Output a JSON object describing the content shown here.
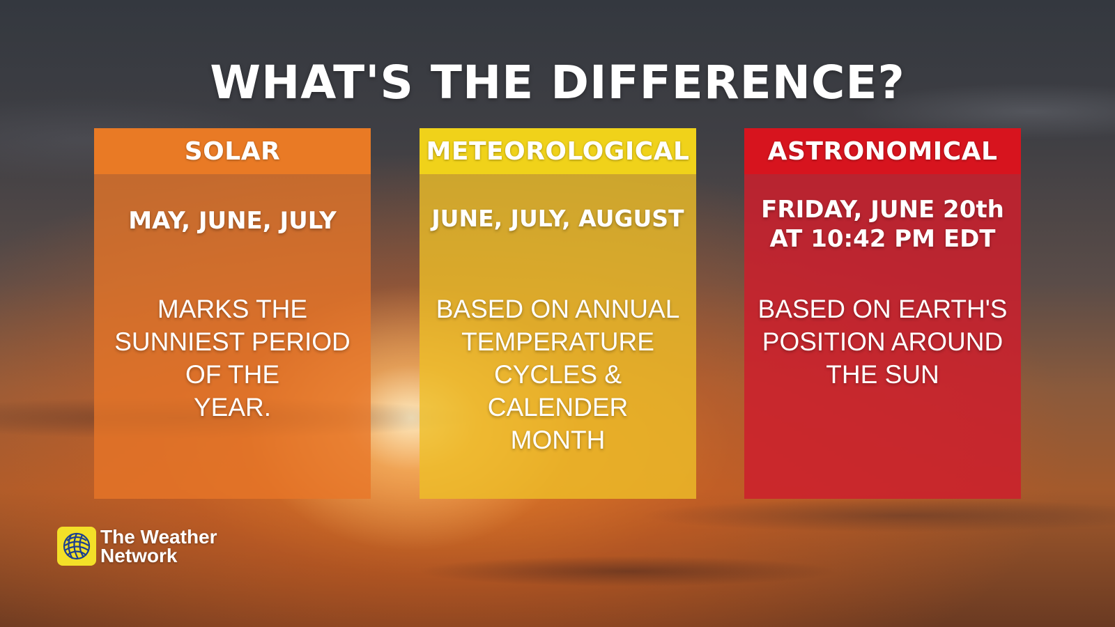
{
  "title": "WHAT'S THE DIFFERENCE?",
  "cards": [
    {
      "header": "SOLAR",
      "date": "MAY, JUNE, JULY",
      "description": "MARKS THE\nSUNNIEST PERIOD\nOF THE\nYEAR.",
      "color": "#e97a25"
    },
    {
      "header": "METEOROLOGICAL",
      "date": "JUNE, JULY, AUGUST",
      "description": "BASED ON ANNUAL\nTEMPERATURE\nCYCLES & CALENDER\nMONTH",
      "color": "#f0d21a"
    },
    {
      "header": "ASTRONOMICAL",
      "date_line1": "FRIDAY, JUNE 20th",
      "date_line2": "AT 10:42 PM EDT",
      "description": "BASED ON EARTH'S\nPOSITION AROUND\nTHE SUN",
      "color": "#d7141e"
    }
  ],
  "logo": {
    "line1": "The Weather",
    "line2": "Network",
    "icon": "weather-network-globe-icon",
    "color": "#f3e028"
  }
}
